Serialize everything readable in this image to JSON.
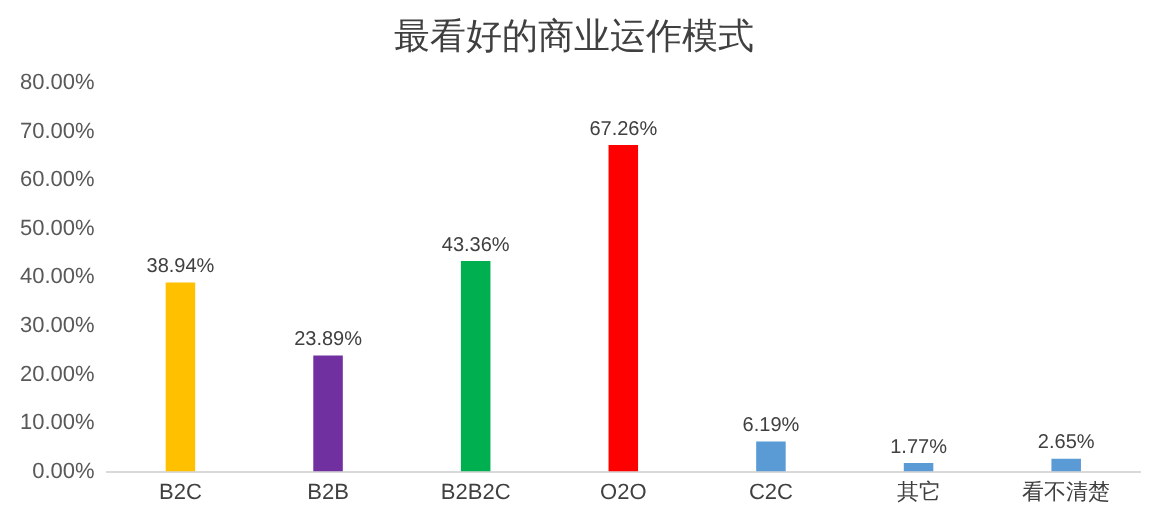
{
  "chart_data": {
    "type": "bar",
    "title": "最看好的商业运作模式",
    "categories": [
      "B2C",
      "B2B",
      "B2B2C",
      "O2O",
      "C2C",
      "其它",
      "看不清楚"
    ],
    "values": [
      38.94,
      23.89,
      43.36,
      67.26,
      6.19,
      1.77,
      2.65
    ],
    "colors": [
      "#ffc000",
      "#7030a0",
      "#00b050",
      "#ff0000",
      "#5b9bd5",
      "#5b9bd5",
      "#5b9bd5"
    ],
    "value_labels": [
      "38.94%",
      "23.89%",
      "43.36%",
      "67.26%",
      "6.19%",
      "1.77%",
      "2.65%"
    ],
    "ylim": [
      0,
      80
    ],
    "yticks": [
      {
        "value": 0,
        "label": "0.00%"
      },
      {
        "value": 10,
        "label": "10.00%"
      },
      {
        "value": 20,
        "label": "20.00%"
      },
      {
        "value": 30,
        "label": "30.00%"
      },
      {
        "value": 40,
        "label": "40.00%"
      },
      {
        "value": 50,
        "label": "50.00%"
      },
      {
        "value": 60,
        "label": "60.00%"
      },
      {
        "value": 70,
        "label": "70.00%"
      },
      {
        "value": 80,
        "label": "80.00%"
      }
    ],
    "grid": false,
    "legend": false
  }
}
